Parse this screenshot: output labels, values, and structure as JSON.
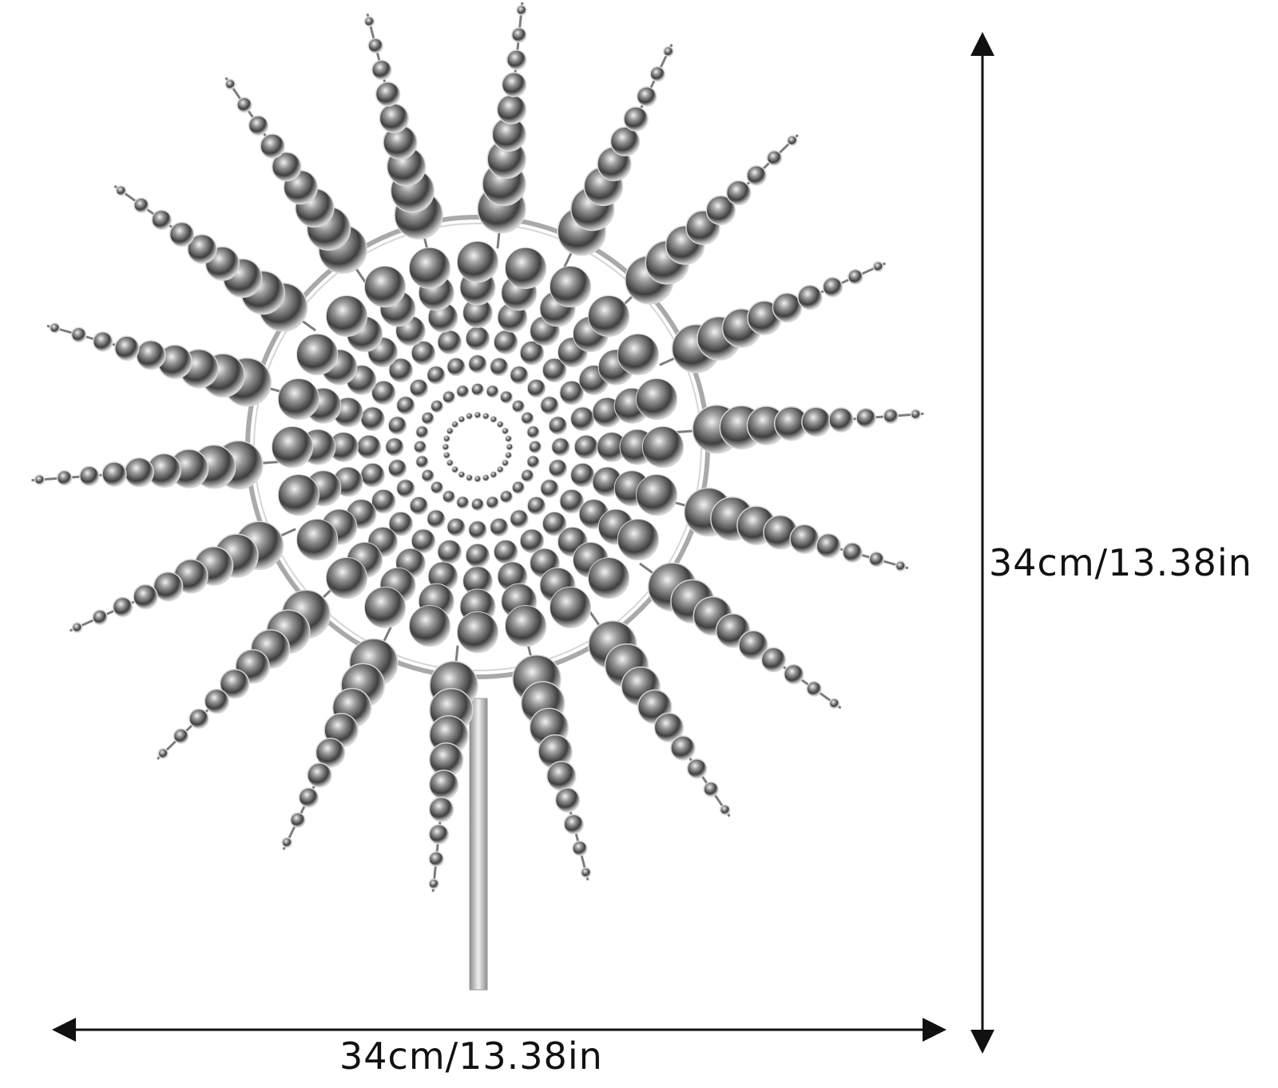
{
  "dimensions": {
    "height_label": "34cm/13.38in",
    "width_label": "34cm/13.38in"
  },
  "product": {
    "rays": 18,
    "colors": {
      "metal_dark": "#3e3e3e",
      "metal_mid": "#7d7d7d",
      "metal_light": "#d6d6d6",
      "ring": "#a9a9a9",
      "arrow": "#111111"
    }
  }
}
